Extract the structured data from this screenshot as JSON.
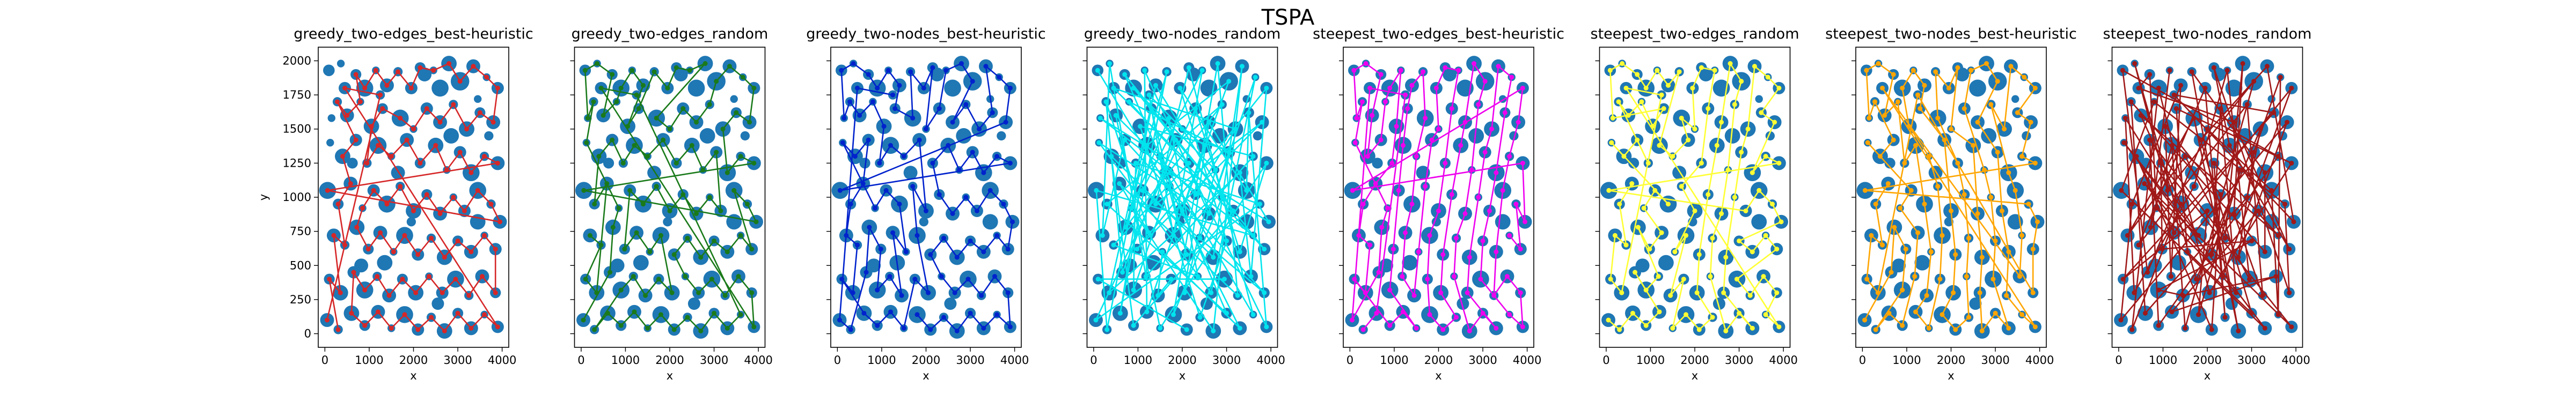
{
  "suptitle": "TSPA",
  "chart_data": {
    "type": "scatter",
    "description_note": "",
    "x_ticks": [
      0,
      1000,
      2000,
      3000,
      4000
    ],
    "y_ticks": [
      0,
      250,
      500,
      750,
      1000,
      1250,
      1500,
      1750,
      2000
    ],
    "xlim": [
      -150,
      4150
    ],
    "ylim": [
      -100,
      2100
    ],
    "xlabel": "x",
    "ylabel": "y",
    "sharey": true,
    "node_color": "#1f77b4",
    "panels": [
      {
        "title": "greedy_two-edges_best-heuristic",
        "path_color": "#d62728"
      },
      {
        "title": "greedy_two-edges_random",
        "path_color": "#1a7a1a"
      },
      {
        "title": "greedy_two-nodes_best-heuristic",
        "path_color": "#0022cc"
      },
      {
        "title": "greedy_two-nodes_random",
        "path_color": "#00e5ee"
      },
      {
        "title": "steepest_two-edges_best-heuristic",
        "path_color": "#ee00ee"
      },
      {
        "title": "steepest_two-edges_random",
        "path_color": "#ffff33"
      },
      {
        "title": "steepest_two-nodes_best-heuristic",
        "path_color": "#ffa500"
      },
      {
        "title": "steepest_two-nodes_random",
        "path_color": "#a01818"
      }
    ],
    "nodes": [
      [
        90,
        1930,
        15
      ],
      [
        150,
        1580,
        10
      ],
      [
        360,
        1980,
        10
      ],
      [
        700,
        1900,
        14
      ],
      [
        900,
        1800,
        22
      ],
      [
        1150,
        1930,
        10
      ],
      [
        1400,
        1820,
        18
      ],
      [
        1650,
        1920,
        12
      ],
      [
        1950,
        1800,
        16
      ],
      [
        2150,
        1950,
        14
      ],
      [
        2450,
        1930,
        10
      ],
      [
        2800,
        1980,
        20
      ],
      [
        3050,
        1850,
        24
      ],
      [
        3350,
        1960,
        18
      ],
      [
        3650,
        1880,
        10
      ],
      [
        3900,
        1800,
        16
      ],
      [
        280,
        1700,
        12
      ],
      [
        500,
        1600,
        18
      ],
      [
        800,
        1700,
        10
      ],
      [
        1050,
        1520,
        20
      ],
      [
        1300,
        1650,
        14
      ],
      [
        1700,
        1580,
        22
      ],
      [
        2000,
        1500,
        10
      ],
      [
        2300,
        1650,
        16
      ],
      [
        2600,
        1550,
        18
      ],
      [
        2900,
        1680,
        12
      ],
      [
        3200,
        1500,
        20
      ],
      [
        3500,
        1620,
        14
      ],
      [
        3800,
        1550,
        18
      ],
      [
        120,
        1400,
        10
      ],
      [
        400,
        1300,
        20
      ],
      [
        700,
        1420,
        16
      ],
      [
        950,
        1250,
        12
      ],
      [
        1200,
        1380,
        22
      ],
      [
        1500,
        1300,
        10
      ],
      [
        1850,
        1420,
        18
      ],
      [
        2150,
        1250,
        14
      ],
      [
        2500,
        1380,
        20
      ],
      [
        2750,
        1200,
        10
      ],
      [
        3050,
        1330,
        16
      ],
      [
        3300,
        1180,
        22
      ],
      [
        3600,
        1300,
        12
      ],
      [
        3900,
        1250,
        18
      ],
      [
        60,
        1050,
        22
      ],
      [
        300,
        950,
        14
      ],
      [
        580,
        1100,
        18
      ],
      [
        850,
        920,
        10
      ],
      [
        1100,
        1050,
        16
      ],
      [
        1400,
        950,
        22
      ],
      [
        1700,
        1080,
        12
      ],
      [
        2000,
        900,
        20
      ],
      [
        2300,
        1020,
        14
      ],
      [
        2600,
        880,
        18
      ],
      [
        2900,
        1000,
        10
      ],
      [
        3150,
        900,
        16
      ],
      [
        3450,
        1050,
        22
      ],
      [
        3750,
        950,
        12
      ],
      [
        3950,
        820,
        18
      ],
      [
        200,
        720,
        18
      ],
      [
        450,
        650,
        12
      ],
      [
        720,
        780,
        20
      ],
      [
        980,
        620,
        14
      ],
      [
        1250,
        740,
        18
      ],
      [
        1550,
        600,
        10
      ],
      [
        1800,
        720,
        22
      ],
      [
        2100,
        580,
        16
      ],
      [
        2400,
        700,
        12
      ],
      [
        2700,
        560,
        20
      ],
      [
        3000,
        680,
        14
      ],
      [
        3300,
        600,
        18
      ],
      [
        3600,
        720,
        10
      ],
      [
        3850,
        620,
        16
      ],
      [
        100,
        400,
        14
      ],
      [
        350,
        300,
        20
      ],
      [
        650,
        450,
        16
      ],
      [
        900,
        320,
        22
      ],
      [
        1180,
        420,
        12
      ],
      [
        1450,
        280,
        18
      ],
      [
        1750,
        400,
        14
      ],
      [
        2050,
        300,
        20
      ],
      [
        2350,
        420,
        10
      ],
      [
        2650,
        300,
        16
      ],
      [
        2950,
        400,
        22
      ],
      [
        3250,
        280,
        12
      ],
      [
        3550,
        420,
        18
      ],
      [
        3850,
        300,
        14
      ],
      [
        50,
        100,
        18
      ],
      [
        300,
        30,
        12
      ],
      [
        600,
        150,
        20
      ],
      [
        900,
        60,
        14
      ],
      [
        1200,
        160,
        18
      ],
      [
        1500,
        40,
        10
      ],
      [
        1800,
        140,
        22
      ],
      [
        2100,
        30,
        16
      ],
      [
        2400,
        120,
        12
      ],
      [
        2700,
        20,
        20
      ],
      [
        3000,
        150,
        14
      ],
      [
        3300,
        40,
        18
      ],
      [
        3600,
        140,
        10
      ],
      [
        3900,
        50,
        16
      ],
      [
        450,
        1800,
        16
      ],
      [
        1250,
        1750,
        12
      ],
      [
        2600,
        1800,
        22
      ],
      [
        3450,
        1720,
        10
      ],
      [
        620,
        1250,
        14
      ],
      [
        1650,
        1180,
        18
      ],
      [
        2850,
        1450,
        20
      ],
      [
        3700,
        1450,
        12
      ],
      [
        820,
        500,
        18
      ],
      [
        1950,
        820,
        12
      ],
      [
        3450,
        820,
        20
      ],
      [
        2550,
        220,
        16
      ],
      [
        1350,
        520,
        20
      ],
      [
        2250,
        1900,
        18
      ]
    ],
    "route_indices": [
      [
        87,
        72,
        73,
        58,
        59,
        44,
        45,
        30,
        31,
        16,
        17,
        18,
        3,
        4,
        5,
        6,
        7,
        8,
        9,
        10,
        11,
        12,
        13,
        14,
        15,
        28,
        27,
        26,
        25,
        24,
        23,
        22,
        21,
        20,
        19,
        32,
        33,
        34,
        35,
        36,
        37,
        38,
        39,
        40,
        41,
        42,
        43,
        57,
        56,
        55,
        54,
        53,
        52,
        51,
        50,
        49,
        48,
        47,
        46,
        60,
        61,
        62,
        63,
        64,
        65,
        66,
        67,
        68,
        69,
        70,
        71,
        85,
        84,
        83,
        82,
        81,
        80,
        79,
        78,
        77,
        76,
        75,
        74,
        88,
        89,
        90,
        91,
        92,
        93,
        94,
        95,
        96,
        97,
        98,
        99,
        100,
        101,
        86
      ],
      [
        86,
        74,
        60,
        46,
        29,
        16,
        1,
        0,
        2,
        3,
        17,
        18,
        4,
        5,
        6,
        19,
        20,
        7,
        8,
        9,
        10,
        11,
        21,
        22,
        23,
        24,
        25,
        12,
        13,
        14,
        15,
        28,
        27,
        26,
        40,
        41,
        42,
        43,
        57,
        56,
        55,
        71,
        70,
        69,
        68,
        67,
        66,
        65,
        80,
        81,
        82,
        83,
        84,
        85,
        99,
        100,
        101,
        98,
        97,
        96,
        95,
        94,
        93,
        92,
        91,
        90,
        89,
        88,
        87,
        75,
        76,
        77,
        78,
        79,
        64,
        63,
        62,
        61,
        47,
        48,
        49,
        50,
        51,
        52,
        53,
        54,
        39,
        38,
        37,
        36,
        35,
        34,
        33,
        32,
        31,
        30,
        44,
        45,
        73,
        72,
        59,
        58
      ],
      [
        101,
        100,
        86,
        87,
        74,
        60,
        61,
        75,
        76,
        77,
        62,
        63,
        48,
        47,
        46,
        29,
        30,
        31,
        45,
        44,
        58,
        59,
        73,
        72,
        88,
        89,
        90,
        91,
        78,
        79,
        64,
        49,
        50,
        35,
        34,
        33,
        32,
        19,
        18,
        17,
        16,
        1,
        0,
        2,
        3,
        4,
        5,
        6,
        20,
        21,
        7,
        8,
        9,
        22,
        23,
        10,
        11,
        12,
        24,
        25,
        26,
        27,
        13,
        14,
        15,
        28,
        43,
        42,
        41,
        40,
        39,
        38,
        37,
        36,
        51,
        52,
        53,
        54,
        55,
        56,
        57,
        71,
        70,
        69,
        68,
        67,
        66,
        65,
        80,
        81,
        82,
        83,
        84,
        85,
        99,
        98,
        97,
        96,
        95,
        94,
        93,
        92
      ],
      [
        0,
        50,
        12,
        33,
        88,
        7,
        60,
        25,
        44,
        96,
        3,
        71,
        18,
        39,
        66,
        14,
        81,
        29,
        52,
        5,
        90,
        37,
        22,
        101,
        64,
        10,
        47,
        85,
        31,
        58,
        2,
        76,
        41,
        19,
        94,
        68,
        8,
        55,
        27,
        99,
        35,
        74,
        16,
        62,
        45,
        83,
        11,
        92,
        53,
        4,
        38,
        79,
        24,
        57,
        1,
        70,
        43,
        87,
        20,
        65,
        34,
        98,
        9,
        48,
        28,
        61,
        15,
        84,
        40,
        73,
        6,
        54,
        89,
        30,
        67,
        13,
        95,
        46,
        21,
        80,
        59,
        36,
        100,
        26,
        51,
        17,
        91,
        42,
        69,
        23,
        86,
        56,
        32,
        75,
        49,
        97,
        63,
        77,
        78,
        82,
        72,
        93
      ],
      [
        87,
        88,
        101,
        100,
        86,
        74,
        60,
        46,
        29,
        16,
        1,
        0,
        2,
        3,
        17,
        30,
        31,
        18,
        4,
        5,
        19,
        32,
        45,
        44,
        58,
        59,
        73,
        72,
        89,
        90,
        91,
        75,
        61,
        47,
        33,
        20,
        6,
        7,
        21,
        34,
        48,
        62,
        76,
        77,
        63,
        49,
        35,
        22,
        8,
        9,
        10,
        23,
        36,
        50,
        64,
        78,
        92,
        93,
        94,
        79,
        65,
        51,
        37,
        24,
        11,
        12,
        25,
        38,
        52,
        66,
        80,
        95,
        96,
        97,
        81,
        67,
        53,
        39,
        26,
        13,
        14,
        27,
        40,
        54,
        68,
        82,
        98,
        99,
        85,
        84,
        83,
        69,
        55,
        41,
        28,
        15,
        43,
        42,
        57,
        56,
        71,
        70
      ],
      [
        86,
        87,
        88,
        89,
        90,
        74,
        75,
        76,
        60,
        61,
        62,
        46,
        47,
        48,
        29,
        30,
        31,
        32,
        16,
        17,
        18,
        19,
        20,
        1,
        0,
        2,
        3,
        4,
        5,
        6,
        7,
        33,
        34,
        35,
        21,
        22,
        8,
        9,
        10,
        23,
        36,
        49,
        50,
        63,
        64,
        77,
        78,
        91,
        92,
        93,
        94,
        79,
        65,
        51,
        37,
        24,
        11,
        12,
        25,
        38,
        52,
        66,
        80,
        95,
        96,
        97,
        81,
        67,
        53,
        39,
        26,
        13,
        14,
        15,
        27,
        28,
        40,
        41,
        42,
        43,
        54,
        55,
        56,
        57,
        68,
        69,
        70,
        71,
        82,
        83,
        84,
        85,
        98,
        99,
        100,
        101,
        73,
        72,
        58,
        59,
        44,
        45
      ],
      [
        86,
        74,
        60,
        61,
        75,
        87,
        88,
        89,
        76,
        62,
        46,
        47,
        29,
        30,
        31,
        16,
        1,
        0,
        2,
        3,
        17,
        18,
        32,
        33,
        48,
        63,
        77,
        90,
        91,
        78,
        64,
        49,
        34,
        19,
        4,
        5,
        6,
        20,
        35,
        50,
        65,
        79,
        92,
        93,
        94,
        80,
        66,
        51,
        36,
        21,
        7,
        8,
        9,
        22,
        37,
        52,
        67,
        81,
        95,
        96,
        97,
        82,
        68,
        53,
        38,
        23,
        10,
        11,
        12,
        24,
        39,
        54,
        69,
        83,
        98,
        99,
        100,
        84,
        70,
        55,
        40,
        25,
        26,
        13,
        14,
        15,
        27,
        28,
        41,
        42,
        43,
        56,
        57,
        71,
        85,
        101,
        73,
        72,
        58,
        59,
        44,
        45
      ],
      [
        5,
        60,
        33,
        91,
        12,
        47,
        2,
        78,
        26,
        53,
        88,
        16,
        69,
        40,
        7,
        95,
        21,
        58,
        34,
        82,
        10,
        49,
        73,
        1,
        64,
        29,
        97,
        43,
        18,
        56,
        85,
        9,
        37,
        71,
        24,
        100,
        3,
        46,
        80,
        15,
        62,
        30,
        93,
        51,
        19,
        76,
        6,
        44,
        86,
        28,
        67,
        39,
        14,
        98,
        55,
        22,
        74,
        0,
        41,
        89,
        31,
        66,
        11,
        52,
        83,
        25,
        59,
        8,
        94,
        36,
        70,
        17,
        48,
        87,
        4,
        79,
        42,
        20,
        63,
        96,
        35,
        13,
        57,
        101,
        27,
        72,
        50,
        92,
        38,
        65,
        23,
        81,
        45,
        99,
        32,
        61,
        68,
        75,
        77,
        84,
        90,
        54
      ]
    ]
  }
}
